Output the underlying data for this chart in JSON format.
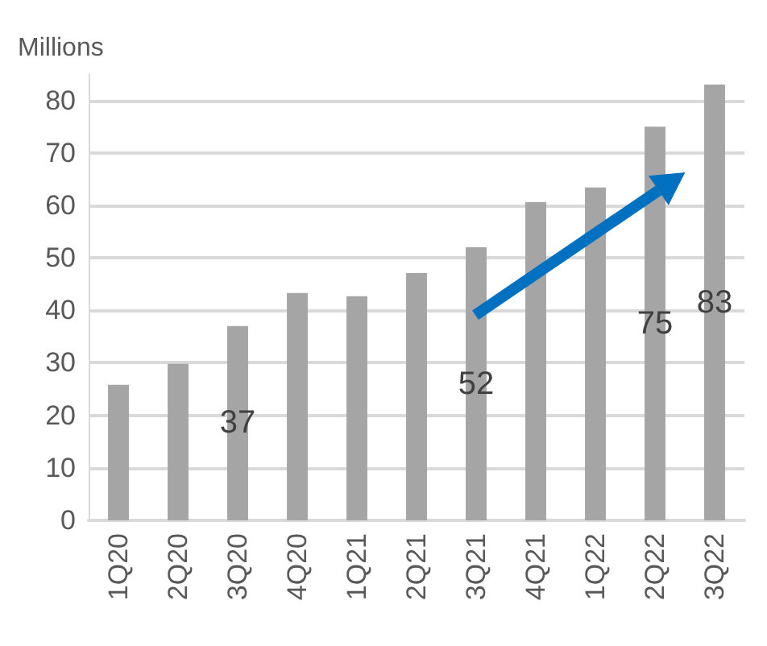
{
  "chart_data": {
    "type": "bar",
    "ylabel": "Millions",
    "categories": [
      "1Q20",
      "2Q20",
      "3Q20",
      "4Q20",
      "1Q21",
      "2Q21",
      "3Q21",
      "4Q21",
      "1Q22",
      "2Q22",
      "3Q22"
    ],
    "values": [
      25.8,
      29.8,
      37,
      43.3,
      42.7,
      47.1,
      52,
      60.6,
      63.4,
      75,
      83
    ],
    "value_labels": [
      null,
      null,
      "37",
      null,
      null,
      null,
      "52",
      null,
      null,
      "75",
      "83"
    ],
    "color": "#a5a5a5",
    "ylim": [
      0,
      85
    ],
    "yticks": [
      0,
      10,
      20,
      30,
      40,
      50,
      60,
      70,
      80
    ],
    "grid": "y"
  }
}
